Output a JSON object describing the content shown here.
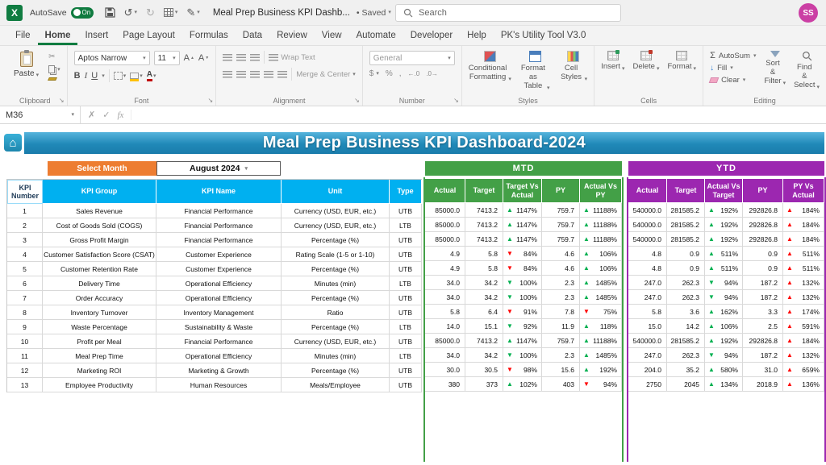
{
  "app": {
    "titlebar": {
      "autosave_label": "AutoSave",
      "autosave_state": "On",
      "doc_title": "Meal Prep Business KPI Dashb...",
      "saved_status": "Saved",
      "search_placeholder": "Search",
      "avatar_initials": "SS"
    },
    "menu_items": [
      "File",
      "Home",
      "Insert",
      "Page Layout",
      "Formulas",
      "Data",
      "Review",
      "View",
      "Automate",
      "Developer",
      "Help",
      "PK's Utility Tool V3.0"
    ],
    "active_menu": "Home",
    "ribbon": {
      "clipboard": {
        "paste": "Paste",
        "group_label": "Clipboard"
      },
      "font": {
        "font_name": "Aptos Narrow",
        "font_size": "11",
        "group_label": "Font"
      },
      "alignment": {
        "wrap_text": "Wrap Text",
        "merge_center": "Merge & Center",
        "group_label": "Alignment"
      },
      "number": {
        "format": "General",
        "group_label": "Number"
      },
      "styles": {
        "conditional_formatting": "Conditional Formatting",
        "format_as_table": "Format as Table",
        "cell_styles": "Cell Styles",
        "group_label": "Styles"
      },
      "cells": {
        "insert": "Insert",
        "delete": "Delete",
        "format": "Format",
        "group_label": "Cells"
      },
      "editing": {
        "autosum": "AutoSum",
        "fill": "Fill",
        "clear": "Clear",
        "sort_filter": "Sort & Filter",
        "find_select": "Find & Select",
        "group_label": "Editing"
      }
    },
    "formula_bar": {
      "cell_ref": "M36",
      "fx_label": "fx"
    }
  },
  "dashboard": {
    "title": "Meal Prep Business KPI Dashboard-2024",
    "select_month_label": "Select Month",
    "selected_month": "August 2024",
    "mtd_label": "MTD",
    "ytd_label": "YTD",
    "colors": {
      "banner_blue": "#2E9BC6",
      "header_cyan": "#00B0F0",
      "mtd_green": "#43A047",
      "ytd_purple": "#9C27B0",
      "select_month_orange": "#ED7D31",
      "arrow_up_green": "#00B050",
      "arrow_down_red": "#FF0000"
    }
  },
  "table": {
    "headers": {
      "left": [
        "KPI Number",
        "KPI Group",
        "KPI Name",
        "Unit",
        "Type"
      ],
      "mtd": [
        "Actual",
        "Target",
        "Target Vs Actual",
        "PY",
        "Actual Vs PY"
      ],
      "ytd": [
        "Actual",
        "Target",
        "Actual Vs Target",
        "PY",
        "PY Vs Actual"
      ]
    },
    "rows": [
      {
        "num": "1",
        "group": "Sales Revenue",
        "name": "Financial Performance",
        "unit": "Currency (USD, EUR, etc.)",
        "type": "UTB",
        "mtd": {
          "actual": "85000.0",
          "target": "7413.2",
          "tva": {
            "d": "up",
            "c": "g",
            "v": "1147%"
          },
          "py": "759.7",
          "avpy": {
            "d": "up",
            "c": "g",
            "v": "11188%"
          }
        },
        "ytd": {
          "actual": "540000.0",
          "target": "281585.2",
          "avt": {
            "d": "up",
            "c": "g",
            "v": "192%"
          },
          "py": "292826.8",
          "pyva": {
            "d": "up",
            "c": "r",
            "v": "184%"
          }
        }
      },
      {
        "num": "2",
        "group": "Cost of Goods Sold (COGS)",
        "name": "Financial Performance",
        "unit": "Currency (USD, EUR, etc.)",
        "type": "LTB",
        "mtd": {
          "actual": "85000.0",
          "target": "7413.2",
          "tva": {
            "d": "up",
            "c": "g",
            "v": "1147%"
          },
          "py": "759.7",
          "avpy": {
            "d": "up",
            "c": "g",
            "v": "11188%"
          }
        },
        "ytd": {
          "actual": "540000.0",
          "target": "281585.2",
          "avt": {
            "d": "up",
            "c": "g",
            "v": "192%"
          },
          "py": "292826.8",
          "pyva": {
            "d": "up",
            "c": "r",
            "v": "184%"
          }
        }
      },
      {
        "num": "3",
        "group": "Gross Profit Margin",
        "name": "Financial Performance",
        "unit": "Percentage (%)",
        "type": "UTB",
        "mtd": {
          "actual": "85000.0",
          "target": "7413.2",
          "tva": {
            "d": "up",
            "c": "g",
            "v": "1147%"
          },
          "py": "759.7",
          "avpy": {
            "d": "up",
            "c": "g",
            "v": "11188%"
          }
        },
        "ytd": {
          "actual": "540000.0",
          "target": "281585.2",
          "avt": {
            "d": "up",
            "c": "g",
            "v": "192%"
          },
          "py": "292826.8",
          "pyva": {
            "d": "up",
            "c": "r",
            "v": "184%"
          }
        }
      },
      {
        "num": "4",
        "group": "Customer Satisfaction Score (CSAT)",
        "name": "Customer Experience",
        "unit": "Rating Scale (1-5 or 1-10)",
        "type": "UTB",
        "mtd": {
          "actual": "4.9",
          "target": "5.8",
          "tva": {
            "d": "down",
            "c": "r",
            "v": "84%"
          },
          "py": "4.6",
          "avpy": {
            "d": "up",
            "c": "g",
            "v": "106%"
          }
        },
        "ytd": {
          "actual": "4.8",
          "target": "0.9",
          "avt": {
            "d": "up",
            "c": "g",
            "v": "511%"
          },
          "py": "0.9",
          "pyva": {
            "d": "up",
            "c": "r",
            "v": "511%"
          }
        }
      },
      {
        "num": "5",
        "group": "Customer Retention Rate",
        "name": "Customer Experience",
        "unit": "Percentage (%)",
        "type": "UTB",
        "mtd": {
          "actual": "4.9",
          "target": "5.8",
          "tva": {
            "d": "down",
            "c": "r",
            "v": "84%"
          },
          "py": "4.6",
          "avpy": {
            "d": "up",
            "c": "g",
            "v": "106%"
          }
        },
        "ytd": {
          "actual": "4.8",
          "target": "0.9",
          "avt": {
            "d": "up",
            "c": "g",
            "v": "511%"
          },
          "py": "0.9",
          "pyva": {
            "d": "up",
            "c": "r",
            "v": "511%"
          }
        }
      },
      {
        "num": "6",
        "group": "Delivery Time",
        "name": "Operational Efficiency",
        "unit": "Minutes (min)",
        "type": "LTB",
        "mtd": {
          "actual": "34.0",
          "target": "34.2",
          "tva": {
            "d": "down",
            "c": "g",
            "v": "100%"
          },
          "py": "2.3",
          "avpy": {
            "d": "up",
            "c": "g",
            "v": "1485%"
          }
        },
        "ytd": {
          "actual": "247.0",
          "target": "262.3",
          "avt": {
            "d": "down",
            "c": "g",
            "v": "94%"
          },
          "py": "187.2",
          "pyva": {
            "d": "up",
            "c": "r",
            "v": "132%"
          }
        }
      },
      {
        "num": "7",
        "group": "Order Accuracy",
        "name": "Operational Efficiency",
        "unit": "Percentage (%)",
        "type": "UTB",
        "mtd": {
          "actual": "34.0",
          "target": "34.2",
          "tva": {
            "d": "down",
            "c": "g",
            "v": "100%"
          },
          "py": "2.3",
          "avpy": {
            "d": "up",
            "c": "g",
            "v": "1485%"
          }
        },
        "ytd": {
          "actual": "247.0",
          "target": "262.3",
          "avt": {
            "d": "down",
            "c": "g",
            "v": "94%"
          },
          "py": "187.2",
          "pyva": {
            "d": "up",
            "c": "r",
            "v": "132%"
          }
        }
      },
      {
        "num": "8",
        "group": "Inventory Turnover",
        "name": "Inventory Management",
        "unit": "Ratio",
        "type": "UTB",
        "mtd": {
          "actual": "5.8",
          "target": "6.4",
          "tva": {
            "d": "down",
            "c": "r",
            "v": "91%"
          },
          "py": "7.8",
          "avpy": {
            "d": "down",
            "c": "r",
            "v": "75%"
          }
        },
        "ytd": {
          "actual": "5.8",
          "target": "3.6",
          "avt": {
            "d": "up",
            "c": "g",
            "v": "162%"
          },
          "py": "3.3",
          "pyva": {
            "d": "up",
            "c": "r",
            "v": "174%"
          }
        }
      },
      {
        "num": "9",
        "group": "Waste Percentage",
        "name": "Sustainability & Waste",
        "unit": "Percentage (%)",
        "type": "LTB",
        "mtd": {
          "actual": "14.0",
          "target": "15.1",
          "tva": {
            "d": "down",
            "c": "g",
            "v": "92%"
          },
          "py": "11.9",
          "avpy": {
            "d": "up",
            "c": "g",
            "v": "118%"
          }
        },
        "ytd": {
          "actual": "15.0",
          "target": "14.2",
          "avt": {
            "d": "up",
            "c": "g",
            "v": "106%"
          },
          "py": "2.5",
          "pyva": {
            "d": "up",
            "c": "r",
            "v": "591%"
          }
        }
      },
      {
        "num": "10",
        "group": "Profit per Meal",
        "name": "Financial Performance",
        "unit": "Currency (USD, EUR, etc.)",
        "type": "UTB",
        "mtd": {
          "actual": "85000.0",
          "target": "7413.2",
          "tva": {
            "d": "up",
            "c": "g",
            "v": "1147%"
          },
          "py": "759.7",
          "avpy": {
            "d": "up",
            "c": "g",
            "v": "11188%"
          }
        },
        "ytd": {
          "actual": "540000.0",
          "target": "281585.2",
          "avt": {
            "d": "up",
            "c": "g",
            "v": "192%"
          },
          "py": "292826.8",
          "pyva": {
            "d": "up",
            "c": "r",
            "v": "184%"
          }
        }
      },
      {
        "num": "11",
        "group": "Meal Prep Time",
        "name": "Operational Efficiency",
        "unit": "Minutes (min)",
        "type": "LTB",
        "mtd": {
          "actual": "34.0",
          "target": "34.2",
          "tva": {
            "d": "down",
            "c": "g",
            "v": "100%"
          },
          "py": "2.3",
          "avpy": {
            "d": "up",
            "c": "g",
            "v": "1485%"
          }
        },
        "ytd": {
          "actual": "247.0",
          "target": "262.3",
          "avt": {
            "d": "down",
            "c": "g",
            "v": "94%"
          },
          "py": "187.2",
          "pyva": {
            "d": "up",
            "c": "r",
            "v": "132%"
          }
        }
      },
      {
        "num": "12",
        "group": "Marketing ROI",
        "name": "Marketing & Growth",
        "unit": "Percentage (%)",
        "type": "UTB",
        "mtd": {
          "actual": "30.0",
          "target": "30.5",
          "tva": {
            "d": "down",
            "c": "r",
            "v": "98%"
          },
          "py": "15.6",
          "avpy": {
            "d": "up",
            "c": "g",
            "v": "192%"
          }
        },
        "ytd": {
          "actual": "204.0",
          "target": "35.2",
          "avt": {
            "d": "up",
            "c": "g",
            "v": "580%"
          },
          "py": "31.0",
          "pyva": {
            "d": "up",
            "c": "r",
            "v": "659%"
          }
        }
      },
      {
        "num": "13",
        "group": "Employee Productivity",
        "name": "Human Resources",
        "unit": "Meals/Employee",
        "type": "UTB",
        "mtd": {
          "actual": "380",
          "target": "373",
          "tva": {
            "d": "up",
            "c": "g",
            "v": "102%"
          },
          "py": "403",
          "avpy": {
            "d": "down",
            "c": "r",
            "v": "94%"
          }
        },
        "ytd": {
          "actual": "2750",
          "target": "2045",
          "avt": {
            "d": "up",
            "c": "g",
            "v": "134%"
          },
          "py": "2018.9",
          "pyva": {
            "d": "up",
            "c": "r",
            "v": "136%"
          }
        }
      }
    ]
  }
}
